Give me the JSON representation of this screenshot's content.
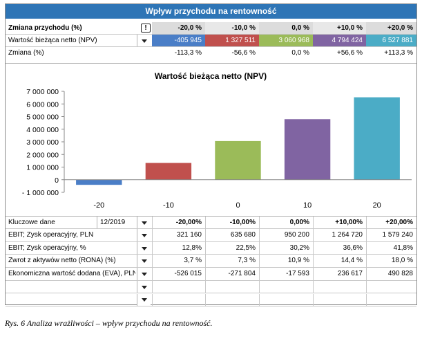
{
  "title": "Wpływ przychodu na rentowność",
  "header": {
    "label": "Zmiana przychodu (%)",
    "excl": "!",
    "values": [
      "-20,0 %",
      "-10,0 %",
      "0,0 %",
      "+10,0 %",
      "+20,0 %"
    ]
  },
  "npv_row": {
    "label": "Wartość bieżąca netto (NPV)",
    "values": [
      "-405 945",
      "1 327 511",
      "3 060 968",
      "4 794 424",
      "6 527 881"
    ]
  },
  "change_row": {
    "label": "Zmiana (%)",
    "values": [
      "-113,3 %",
      "-56,6 %",
      "0,0 %",
      "+56,6 %",
      "+113,3 %"
    ]
  },
  "colors": {
    "title_bg": "#2e75b6",
    "series": [
      "#4a7ec7",
      "#c0504d",
      "#9bbb59",
      "#8064a2",
      "#4bacc6"
    ],
    "header_cols": [
      "#dcdcdc",
      "#e8e8e8",
      "#dcdcdc",
      "#e8e8e8",
      "#dcdcdc"
    ]
  },
  "chart_data": {
    "type": "bar",
    "title": "Wartość bieżąca netto (NPV)",
    "categories": [
      "-20",
      "-10",
      "0",
      "10",
      "20"
    ],
    "values": [
      -405945,
      1327511,
      3060968,
      4794424,
      6527881
    ],
    "ylim": [
      -1000000,
      7000000
    ],
    "yticks": [
      7000000,
      6000000,
      5000000,
      4000000,
      3000000,
      2000000,
      1000000,
      0,
      -1000000
    ],
    "ytick_labels": [
      "7 000 000",
      "6 000 000",
      "5 000 000",
      "4 000 000",
      "3 000 000",
      "2 000 000",
      "1 000 000",
      "0",
      "- 1 000 000"
    ],
    "grid": false,
    "xlabel": "",
    "ylabel": ""
  },
  "key_data": {
    "label": "Kluczowe dane",
    "period": "12/2019",
    "values": [
      "-20,00%",
      "-10,00%",
      "0,00%",
      "+10,00%",
      "+20,00%"
    ]
  },
  "table": {
    "rows": [
      {
        "label": "EBIT; Zysk operacyjny, PLN",
        "values": [
          "321 160",
          "635 680",
          "950 200",
          "1 264 720",
          "1 579 240"
        ]
      },
      {
        "label": "EBIT; Zysk operacyjny, %",
        "values": [
          "12,8%",
          "22,5%",
          "30,2%",
          "36,6%",
          "41,8%"
        ]
      },
      {
        "label": "Zwrot z aktywów netto (RONA) (%)",
        "values": [
          "3,7 %",
          "7,3 %",
          "10,9 %",
          "14,4 %",
          "18,0 %"
        ]
      },
      {
        "label": "Ekonomiczna wartość dodana (EVA), PLN",
        "values": [
          "-526 015",
          "-271 804",
          "-17 593",
          "236 617",
          "490 828"
        ]
      },
      {
        "label": "",
        "values": [
          "",
          "",
          "",
          "",
          ""
        ]
      },
      {
        "label": "",
        "values": [
          "",
          "",
          "",
          "",
          ""
        ]
      }
    ]
  },
  "caption": "Rys. 6 Analiza wrażliwości – wpływ przychodu na rentowność."
}
